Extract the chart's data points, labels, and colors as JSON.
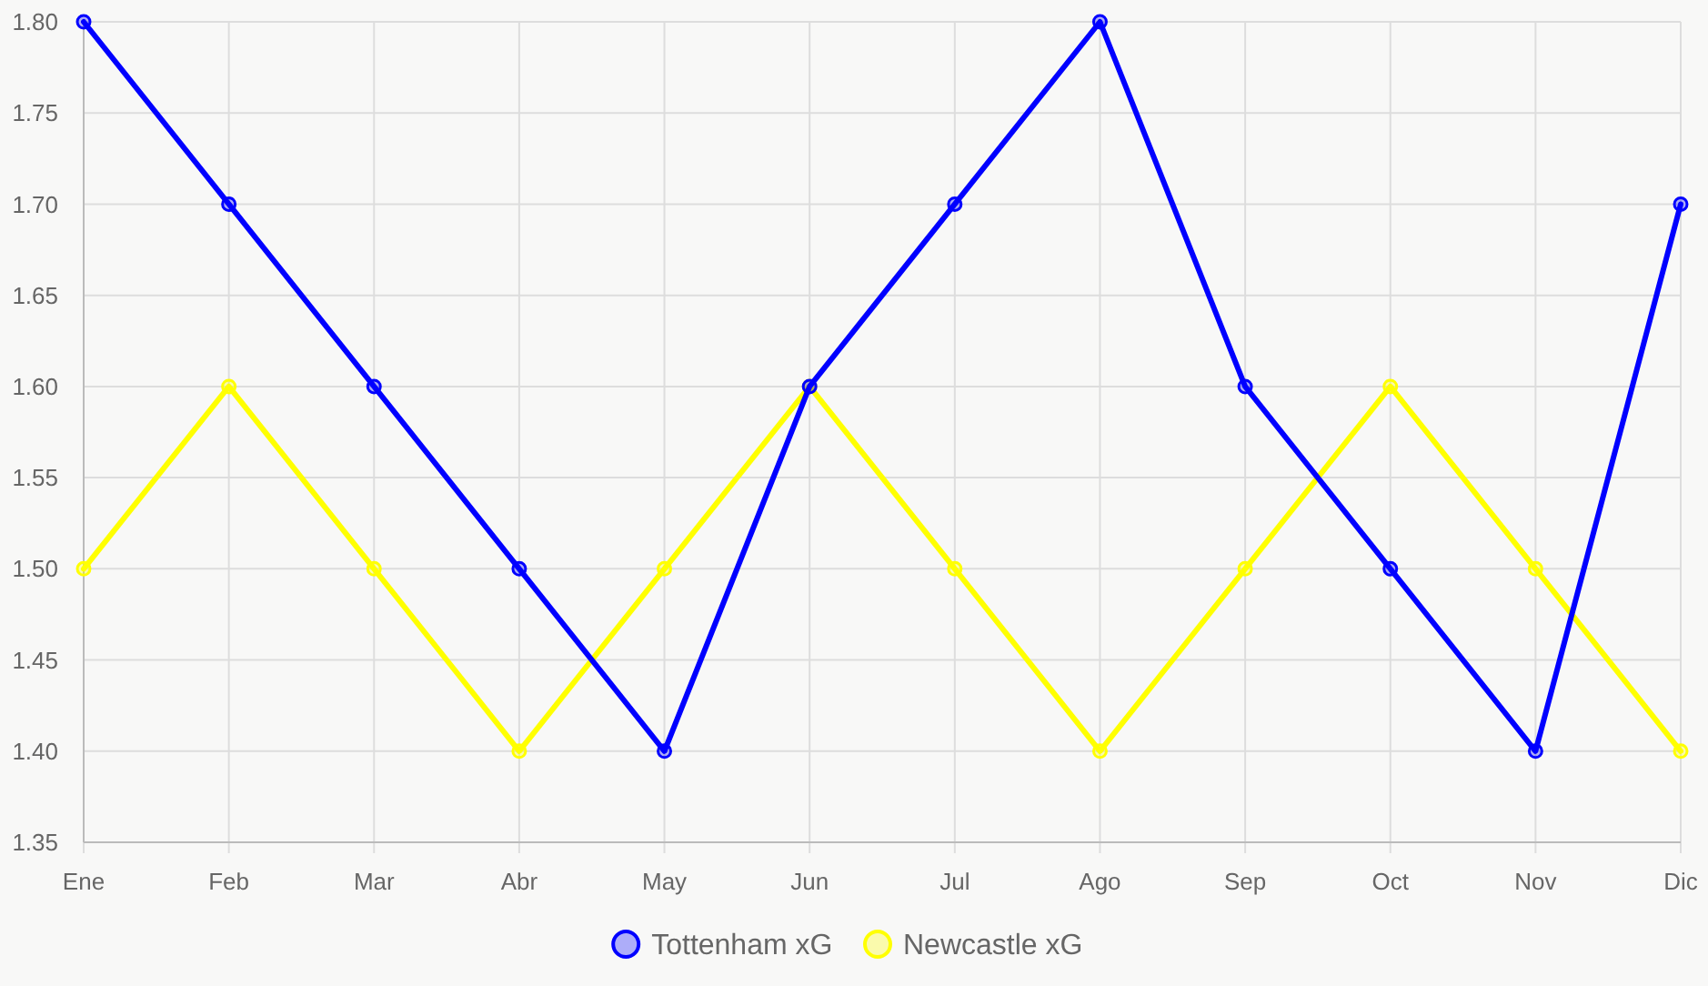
{
  "chart_data": {
    "type": "line",
    "categories": [
      "Ene",
      "Feb",
      "Mar",
      "Abr",
      "May",
      "Jun",
      "Jul",
      "Ago",
      "Sep",
      "Oct",
      "Nov",
      "Dic"
    ],
    "series": [
      {
        "name": "Tottenham xG",
        "color": "#0000ff",
        "values": [
          1.8,
          1.7,
          1.6,
          1.5,
          1.4,
          1.6,
          1.7,
          1.8,
          1.6,
          1.5,
          1.4,
          1.7
        ]
      },
      {
        "name": "Newcastle xG",
        "color": "#ffff00",
        "values": [
          1.5,
          1.6,
          1.5,
          1.4,
          1.5,
          1.6,
          1.5,
          1.4,
          1.5,
          1.6,
          1.5,
          1.4
        ]
      }
    ],
    "ylim": [
      1.35,
      1.8
    ],
    "yticks": [
      {
        "value": 1.35,
        "label": "1.35"
      },
      {
        "value": 1.4,
        "label": "1.40"
      },
      {
        "value": 1.45,
        "label": "1.45"
      },
      {
        "value": 1.5,
        "label": "1.50"
      },
      {
        "value": 1.55,
        "label": "1.55"
      },
      {
        "value": 1.6,
        "label": "1.60"
      },
      {
        "value": 1.65,
        "label": "1.65"
      },
      {
        "value": 1.7,
        "label": "1.70"
      },
      {
        "value": 1.75,
        "label": "1.75"
      },
      {
        "value": 1.8,
        "label": "1.80"
      }
    ],
    "grid": true,
    "legend": "bottom",
    "marker": "circle",
    "line_style": "solid"
  }
}
